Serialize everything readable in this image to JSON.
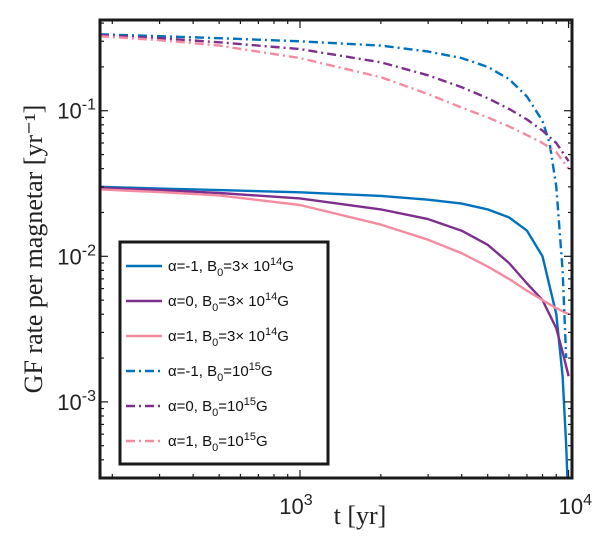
{
  "chart_data": {
    "type": "line",
    "xlabel": "t [yr]",
    "ylabel": "GF rate per magnetar [yr⁻¹]",
    "xscale": "log",
    "yscale": "log",
    "xlim": [
      180,
      10300
    ],
    "ylim": [
      0.0003,
      0.42
    ],
    "x_ticks": [
      {
        "value": 1000,
        "mantissa": "10",
        "exp": "3"
      },
      {
        "value": 10000,
        "mantissa": "10",
        "exp": "4"
      }
    ],
    "y_ticks": [
      {
        "value": 0.001,
        "mantissa": "10",
        "exp": "-3"
      },
      {
        "value": 0.01,
        "mantissa": "10",
        "exp": "-2"
      },
      {
        "value": 0.1,
        "mantissa": "10",
        "exp": "-1"
      }
    ],
    "grid": false,
    "legend_position": "bottom-left",
    "series": [
      {
        "name_parts": {
          "pre": "α=-1, B",
          "sub": "0",
          "mid": "=3× 10",
          "sup": "14",
          "post": "G"
        },
        "color": "#0072BD",
        "dash": "solid",
        "points": [
          [
            180,
            0.03
          ],
          [
            300,
            0.0292
          ],
          [
            500,
            0.0285
          ],
          [
            1000,
            0.0275
          ],
          [
            2000,
            0.026
          ],
          [
            3000,
            0.0245
          ],
          [
            4000,
            0.023
          ],
          [
            5000,
            0.021
          ],
          [
            6000,
            0.0185
          ],
          [
            7000,
            0.015
          ],
          [
            8000,
            0.01
          ],
          [
            9000,
            0.004
          ],
          [
            9500,
            0.0015
          ],
          [
            9800,
            0.0005
          ],
          [
            9900,
            0.0003
          ]
        ]
      },
      {
        "name_parts": {
          "pre": "α=0, B",
          "sub": "0",
          "mid": "=3× 10",
          "sup": "14",
          "post": "G"
        },
        "color": "#7E2F8E",
        "dash": "solid",
        "points": [
          [
            180,
            0.0295
          ],
          [
            300,
            0.0285
          ],
          [
            500,
            0.0272
          ],
          [
            1000,
            0.025
          ],
          [
            2000,
            0.021
          ],
          [
            3000,
            0.018
          ],
          [
            4000,
            0.015
          ],
          [
            5000,
            0.012
          ],
          [
            6000,
            0.009
          ],
          [
            7000,
            0.0065
          ],
          [
            8000,
            0.005
          ],
          [
            9000,
            0.0032
          ],
          [
            9500,
            0.0022
          ],
          [
            10000,
            0.0015
          ]
        ]
      },
      {
        "name_parts": {
          "pre": "α=1, B",
          "sub": "0",
          "mid": "=3× 10",
          "sup": "14",
          "post": "G"
        },
        "color": "#F48BA0",
        "dash": "solid",
        "points": [
          [
            180,
            0.0288
          ],
          [
            300,
            0.0276
          ],
          [
            500,
            0.0262
          ],
          [
            1000,
            0.0225
          ],
          [
            2000,
            0.0165
          ],
          [
            3000,
            0.013
          ],
          [
            4000,
            0.0105
          ],
          [
            5000,
            0.0085
          ],
          [
            6000,
            0.007
          ],
          [
            7000,
            0.0058
          ],
          [
            8000,
            0.005
          ],
          [
            9000,
            0.0044
          ],
          [
            10000,
            0.004
          ]
        ]
      },
      {
        "name_parts": {
          "pre": "α=-1, B",
          "sub": "0",
          "mid": "=10",
          "sup": "15",
          "post": "G"
        },
        "color": "#0072BD",
        "dash": "dashdot",
        "points": [
          [
            180,
            0.335
          ],
          [
            300,
            0.325
          ],
          [
            500,
            0.315
          ],
          [
            1000,
            0.3
          ],
          [
            2000,
            0.28
          ],
          [
            3000,
            0.255
          ],
          [
            4000,
            0.23
          ],
          [
            5000,
            0.2
          ],
          [
            6000,
            0.165
          ],
          [
            7000,
            0.125
          ],
          [
            8000,
            0.085
          ],
          [
            8500,
            0.06
          ],
          [
            9000,
            0.03
          ],
          [
            9500,
            0.008
          ],
          [
            9800,
            0.002
          ]
        ]
      },
      {
        "name_parts": {
          "pre": "α=0, B",
          "sub": "0",
          "mid": "=10",
          "sup": "15",
          "post": "G"
        },
        "color": "#7E2F8E",
        "dash": "dashdot",
        "points": [
          [
            180,
            0.33
          ],
          [
            300,
            0.315
          ],
          [
            500,
            0.295
          ],
          [
            1000,
            0.265
          ],
          [
            2000,
            0.215
          ],
          [
            3000,
            0.175
          ],
          [
            4000,
            0.145
          ],
          [
            5000,
            0.122
          ],
          [
            6000,
            0.103
          ],
          [
            7000,
            0.087
          ],
          [
            8000,
            0.073
          ],
          [
            9000,
            0.06
          ],
          [
            10000,
            0.045
          ]
        ]
      },
      {
        "name_parts": {
          "pre": "α=1, B",
          "sub": "0",
          "mid": "=10",
          "sup": "15",
          "post": "G"
        },
        "color": "#F48BA0",
        "dash": "dashdot",
        "points": [
          [
            180,
            0.325
          ],
          [
            300,
            0.305
          ],
          [
            500,
            0.28
          ],
          [
            1000,
            0.23
          ],
          [
            2000,
            0.17
          ],
          [
            3000,
            0.13
          ],
          [
            4000,
            0.105
          ],
          [
            5000,
            0.09
          ],
          [
            6000,
            0.078
          ],
          [
            7000,
            0.068
          ],
          [
            8000,
            0.06
          ],
          [
            9000,
            0.052
          ],
          [
            10000,
            0.04
          ]
        ]
      }
    ]
  }
}
